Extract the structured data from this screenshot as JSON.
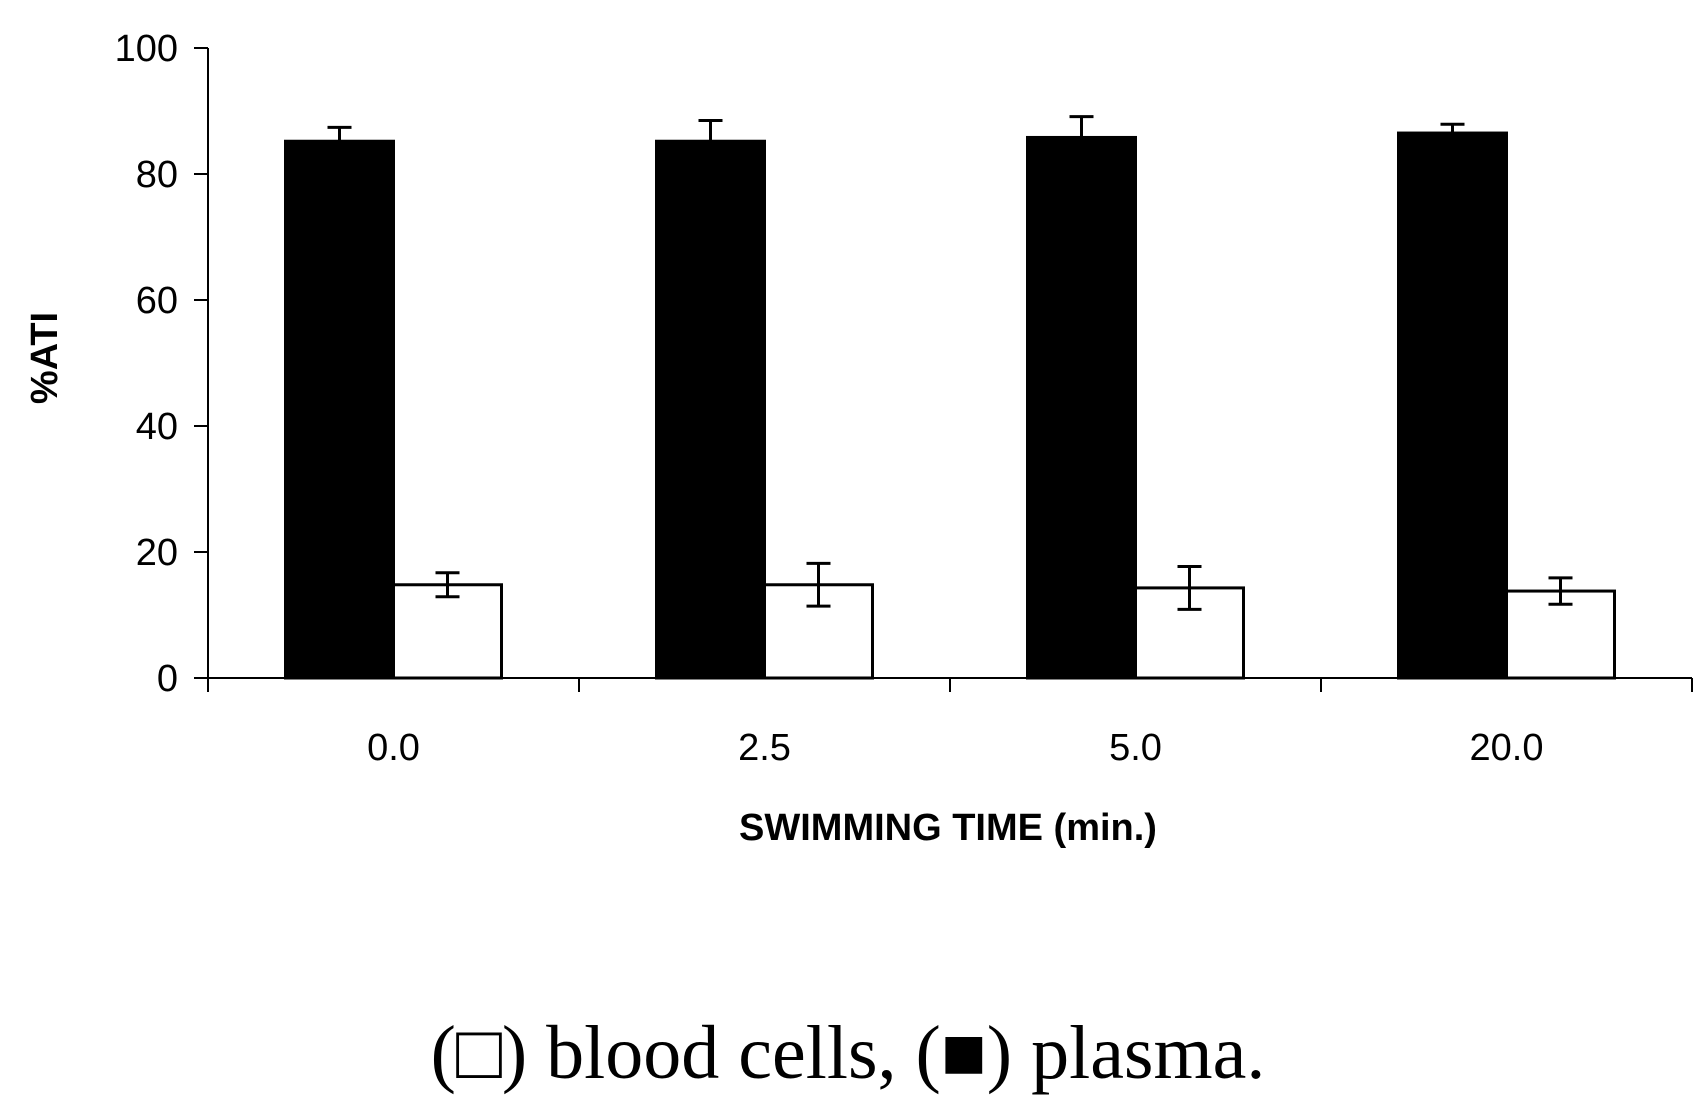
{
  "chart_data": {
    "type": "bar",
    "title": "",
    "xlabel": "SWIMMING TIME (min.)",
    "ylabel": "%ATI",
    "ylim": [
      0,
      100
    ],
    "yticks": [
      "0",
      "20",
      "40",
      "60",
      "80",
      "100"
    ],
    "categories": [
      "0.0",
      "2.5",
      "5.0",
      "20.0"
    ],
    "series": [
      {
        "name": "plasma",
        "color": "#000000",
        "values": [
          85.2,
          85.2,
          85.8,
          86.5
        ],
        "errors": [
          2.2,
          3.3,
          3.3,
          1.4
        ]
      },
      {
        "name": "blood cells",
        "color": "#ffffff",
        "values": [
          14.8,
          14.8,
          14.3,
          13.8
        ],
        "errors": [
          1.9,
          3.4,
          3.4,
          2.1
        ]
      }
    ],
    "grid": false
  },
  "caption": {
    "open1": "(",
    "blood_cells_symbol": "□",
    "blood_cells_text": ") blood cells, (",
    "plasma_symbol": "■",
    "plasma_text": ") plasma."
  }
}
